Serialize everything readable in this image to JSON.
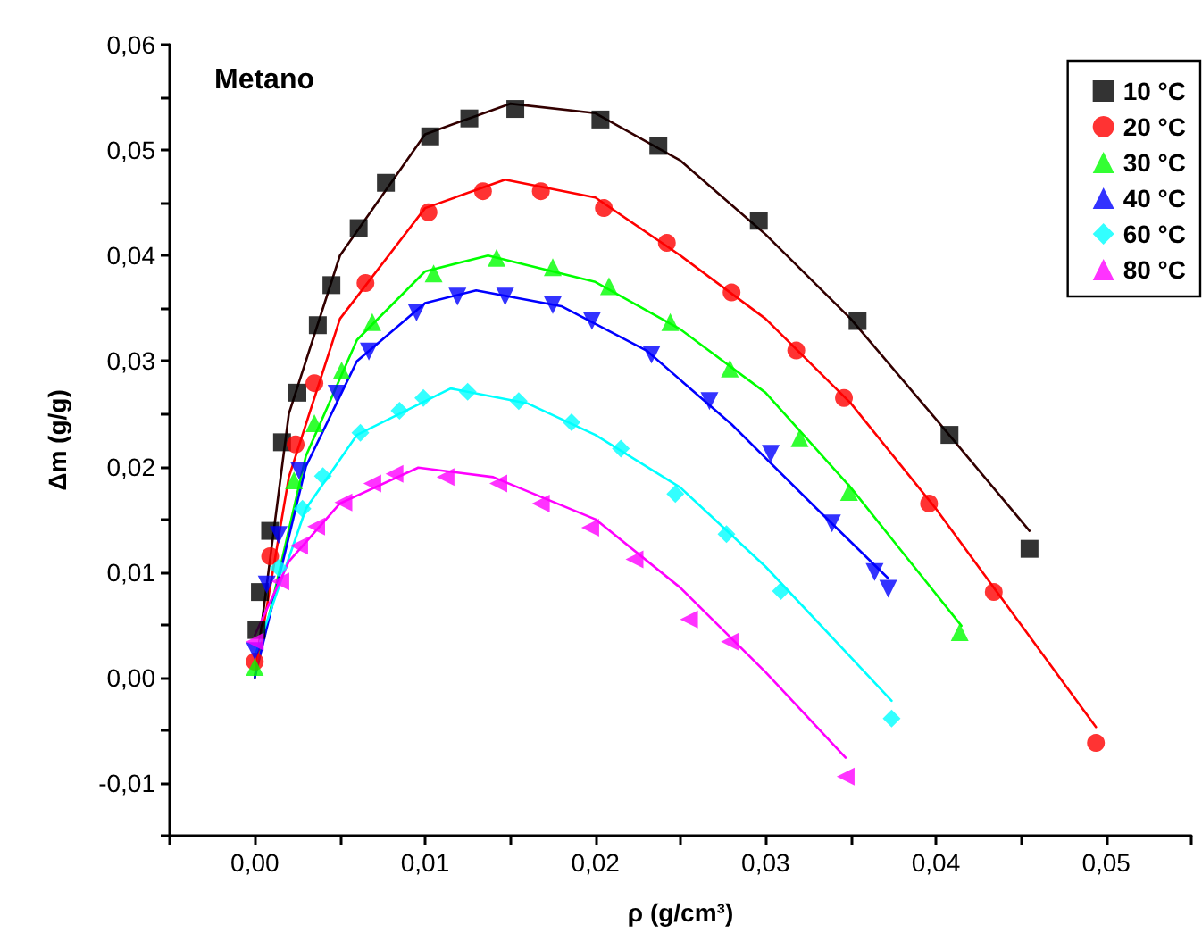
{
  "chart_data": {
    "type": "scatter",
    "xlabel": "ρ (g/cm³)",
    "ylabel": "Δm (g/g)",
    "annotations": [
      "Metano"
    ],
    "xlim": [
      -0.005,
      0.055
    ],
    "xticks": [
      {
        "value": -0.005,
        "label": null
      },
      {
        "value": 0,
        "label": "0,00"
      },
      {
        "value": 0.005,
        "label": null
      },
      {
        "value": 0.01,
        "label": "0,01"
      },
      {
        "value": 0.015,
        "label": null
      },
      {
        "value": 0.02,
        "label": "0,02"
      },
      {
        "value": 0.025,
        "label": null
      },
      {
        "value": 0.03,
        "label": "0,03"
      },
      {
        "value": 0.035,
        "label": null
      },
      {
        "value": 0.04,
        "label": "0,04"
      },
      {
        "value": 0.045,
        "label": null
      },
      {
        "value": 0.05,
        "label": "0,05"
      },
      {
        "value": 0.055,
        "label": null
      }
    ],
    "ylim": [
      -0.015,
      0.06
    ],
    "yticks": [
      {
        "value": -0.015,
        "label": null
      },
      {
        "value": -0.01,
        "label": "-0,01"
      },
      {
        "value": -0.005,
        "label": null
      },
      {
        "value": 0,
        "label": "0,00"
      },
      {
        "value": 0.005,
        "label": null
      },
      {
        "value": 0.01,
        "label": "0,01"
      },
      {
        "value": 0.015,
        "label": null
      },
      {
        "value": 0.02,
        "label": "0,02"
      },
      {
        "value": 0.025,
        "label": null
      },
      {
        "value": 0.03,
        "label": "0,03"
      },
      {
        "value": 0.035,
        "label": null
      },
      {
        "value": 0.04,
        "label": "0,04"
      },
      {
        "value": 0.045,
        "label": null
      },
      {
        "value": 0.05,
        "label": "0,05"
      },
      {
        "value": 0.055,
        "label": null
      },
      {
        "value": 0.06,
        "label": "0,06"
      }
    ],
    "grid": false,
    "legend": "top right",
    "series": [
      {
        "name": "10 °C",
        "color": "#000000",
        "marker": "square",
        "x": [
          0.0001,
          0.0003,
          0.0009,
          0.0016,
          0.0025,
          0.0037,
          0.0045,
          0.0061,
          0.0077,
          0.0103,
          0.0126,
          0.0153,
          0.0203,
          0.0237,
          0.0296,
          0.0354,
          0.0408,
          0.0455
        ],
        "values": [
          0.0045,
          0.0081,
          0.0139,
          0.0223,
          0.027,
          0.0334,
          0.0372,
          0.0426,
          0.0469,
          0.0513,
          0.053,
          0.0539,
          0.0529,
          0.0504,
          0.0433,
          0.0338,
          0.023,
          0.0122
        ]
      },
      {
        "name": "20 °C",
        "color": "#ff0000",
        "marker": "circle",
        "x": [
          0,
          0.0009,
          0.0024,
          0.0035,
          0.0065,
          0.0102,
          0.0134,
          0.0168,
          0.0205,
          0.0242,
          0.028,
          0.0318,
          0.0346,
          0.0396,
          0.0434,
          0.0494
        ],
        "values": [
          0.0015,
          0.0115,
          0.0221,
          0.0279,
          0.0374,
          0.0441,
          0.0461,
          0.0461,
          0.0445,
          0.0412,
          0.0365,
          0.031,
          0.0265,
          0.0165,
          0.0081,
          -0.0062
        ]
      },
      {
        "name": "30 °C",
        "color": "#00ff00",
        "marker": "triangle",
        "x": [
          0,
          0.0023,
          0.0035,
          0.0051,
          0.0069,
          0.0105,
          0.0142,
          0.0175,
          0.0208,
          0.0244,
          0.0279,
          0.032,
          0.0349,
          0.0414
        ],
        "values": [
          0.001,
          0.0187,
          0.0241,
          0.0291,
          0.0337,
          0.0383,
          0.0398,
          0.0389,
          0.0371,
          0.0337,
          0.0293,
          0.0227,
          0.0176,
          0.0043
        ]
      },
      {
        "name": "40 °C",
        "color": "#0000ff",
        "marker": "triangle-down",
        "x": [
          0,
          0.0007,
          0.0014,
          0.0026,
          0.0048,
          0.0067,
          0.0095,
          0.0119,
          0.0147,
          0.0175,
          0.0198,
          0.0233,
          0.0267,
          0.0303,
          0.0339,
          0.0364,
          0.0372
        ],
        "values": [
          0.0025,
          0.0088,
          0.0135,
          0.0196,
          0.0269,
          0.0309,
          0.0346,
          0.0361,
          0.0361,
          0.0353,
          0.0338,
          0.0306,
          0.0262,
          0.0212,
          0.0146,
          0.01,
          0.0084
        ]
      },
      {
        "name": "60 °C",
        "color": "#00ffff",
        "marker": "diamond",
        "x": [
          0.0014,
          0.0028,
          0.004,
          0.0062,
          0.0085,
          0.0099,
          0.0125,
          0.0155,
          0.0186,
          0.0215,
          0.0247,
          0.0277,
          0.0309,
          0.0374
        ],
        "values": [
          0.0104,
          0.016,
          0.0191,
          0.0232,
          0.0253,
          0.0265,
          0.0271,
          0.0262,
          0.0242,
          0.0217,
          0.0174,
          0.0136,
          0.0082,
          -0.0039
        ]
      },
      {
        "name": "80 °C",
        "color": "#ff00ff",
        "marker": "triangle-left",
        "x": [
          0,
          0.0015,
          0.0026,
          0.0036,
          0.0052,
          0.0069,
          0.0082,
          0.0112,
          0.0143,
          0.0168,
          0.0197,
          0.0223,
          0.0255,
          0.0279,
          0.0347
        ],
        "values": [
          0.0034,
          0.0091,
          0.0125,
          0.0143,
          0.0166,
          0.0184,
          0.0193,
          0.019,
          0.0184,
          0.0165,
          0.0142,
          0.0112,
          0.0055,
          0.0034,
          -0.0094
        ]
      },
      {
        "type": "line",
        "color": "#330000",
        "marker": "none",
        "x": [
          0,
          0.002,
          0.005,
          0.01,
          0.015,
          0.02,
          0.025,
          0.03,
          0.035,
          0.04,
          0.0455
        ],
        "values": [
          0,
          0.025,
          0.04,
          0.0515,
          0.0544,
          0.0535,
          0.049,
          0.042,
          0.034,
          0.0245,
          0.0139
        ]
      },
      {
        "type": "line",
        "color": "#ff0000",
        "marker": "none",
        "x": [
          0,
          0.002,
          0.005,
          0.01,
          0.0147,
          0.02,
          0.025,
          0.03,
          0.035,
          0.04,
          0.045,
          0.0494
        ],
        "values": [
          0,
          0.019,
          0.034,
          0.0445,
          0.0472,
          0.0455,
          0.04,
          0.034,
          0.026,
          0.016,
          0.005,
          -0.0047
        ]
      },
      {
        "type": "line",
        "color": "#00ff00",
        "marker": "none",
        "x": [
          0,
          0.003,
          0.006,
          0.01,
          0.0137,
          0.02,
          0.025,
          0.03,
          0.035,
          0.0415
        ],
        "values": [
          0,
          0.021,
          0.032,
          0.0385,
          0.04,
          0.0375,
          0.033,
          0.027,
          0.018,
          0.0049
        ]
      },
      {
        "type": "line",
        "color": "#0000ff",
        "marker": "none",
        "x": [
          0,
          0.003,
          0.006,
          0.01,
          0.013,
          0.018,
          0.023,
          0.028,
          0.033,
          0.0372
        ],
        "values": [
          0,
          0.02,
          0.03,
          0.0355,
          0.0367,
          0.0352,
          0.031,
          0.024,
          0.016,
          0.0094
        ]
      },
      {
        "type": "line",
        "color": "#00ffff",
        "marker": "none",
        "x": [
          0,
          0.003,
          0.006,
          0.0115,
          0.016,
          0.02,
          0.025,
          0.03,
          0.0374
        ],
        "values": [
          0.002,
          0.016,
          0.023,
          0.0274,
          0.026,
          0.023,
          0.018,
          0.0105,
          -0.0022
        ]
      },
      {
        "type": "line",
        "color": "#ff00ff",
        "marker": "none",
        "x": [
          0,
          0.002,
          0.005,
          0.0096,
          0.014,
          0.02,
          0.025,
          0.03,
          0.0347
        ],
        "values": [
          0.004,
          0.011,
          0.0165,
          0.0199,
          0.019,
          0.015,
          0.0085,
          0.0005,
          -0.0076
        ]
      }
    ]
  }
}
